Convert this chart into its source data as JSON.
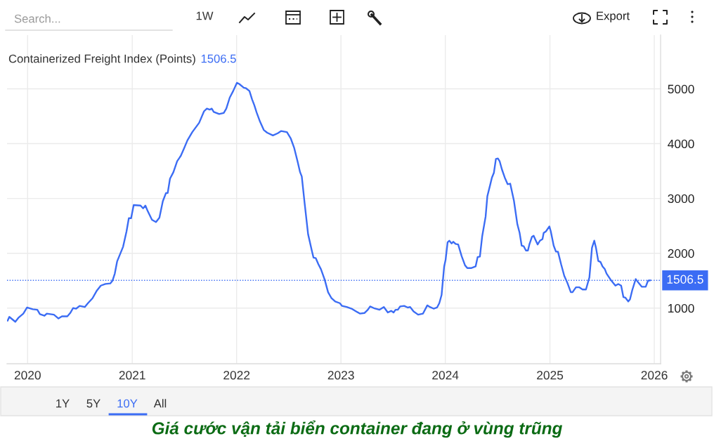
{
  "chart_data": {
    "type": "line",
    "title": "Containerized Freight Index (Points)",
    "subtitle": "1506.5",
    "annotations": [
      "Search...",
      "1W",
      "Export",
      "1Y",
      "5Y",
      "10Y",
      "All",
      "Giá cước vận tải biển container đang ở vùng trũng"
    ],
    "x": [
      "2019-10-23",
      "2019-10-29",
      "2019-11-19",
      "2019-12-01",
      "2019-12-17",
      "2019-12-30",
      "2020-01-19",
      "2020-02-04",
      "2020-02-13",
      "2020-02-29",
      "2020-03-08",
      "2020-04-02",
      "2020-04-18",
      "2020-04-30",
      "2020-05-19",
      "2020-05-29",
      "2020-06-08",
      "2020-06-19",
      "2020-07-01",
      "2020-07-19",
      "2020-07-30",
      "2020-08-15",
      "2020-08-29",
      "2020-09-13",
      "2020-09-29",
      "2020-10-16",
      "2020-10-24",
      "2020-11-01",
      "2020-11-09",
      "2020-11-30",
      "2020-12-12",
      "2020-12-20",
      "2020-12-28",
      "2021-01-06",
      "2021-01-30",
      "2021-02-08",
      "2021-02-16",
      "2021-02-24",
      "2021-03-11",
      "2021-03-25",
      "2021-04-06",
      "2021-04-18",
      "2021-04-29",
      "2021-05-05",
      "2021-05-13",
      "2021-05-25",
      "2021-06-07",
      "2021-06-20",
      "2021-07-01",
      "2021-07-13",
      "2021-07-30",
      "2021-08-23",
      "2021-09-09",
      "2021-09-19",
      "2021-09-29",
      "2021-10-06",
      "2021-10-13",
      "2021-11-01",
      "2021-11-17",
      "2021-11-26",
      "2021-12-08",
      "2021-12-20",
      "2022-01-02",
      "2022-01-10",
      "2022-01-26",
      "2022-02-03",
      "2022-02-15",
      "2022-02-24",
      "2022-03-04",
      "2022-03-12",
      "2022-03-24",
      "2022-04-06",
      "2022-04-18",
      "2022-05-08",
      "2022-05-25",
      "2022-06-06",
      "2022-06-26",
      "2022-07-09",
      "2022-07-21",
      "2022-08-02",
      "2022-08-11",
      "2022-08-17",
      "2022-08-27",
      "2022-09-08",
      "2022-09-21",
      "2022-09-27",
      "2022-10-05",
      "2022-10-14",
      "2022-10-23",
      "2022-11-05",
      "2022-11-17",
      "2022-11-29",
      "2022-12-12",
      "2022-12-28",
      "2023-01-05",
      "2023-01-21",
      "2023-02-07",
      "2023-02-23",
      "2023-03-08",
      "2023-03-24",
      "2023-04-05",
      "2023-04-13",
      "2023-04-26",
      "2023-05-16",
      "2023-05-31",
      "2023-06-14",
      "2023-06-26",
      "2023-07-04",
      "2023-07-11",
      "2023-07-19",
      "2023-07-27",
      "2023-08-10",
      "2023-08-23",
      "2023-08-31",
      "2023-09-12",
      "2023-09-28",
      "2023-10-15",
      "2023-10-30",
      "2023-11-08",
      "2023-11-21",
      "2023-12-03",
      "2023-12-11",
      "2023-12-19",
      "2023-12-28",
      "2024-01-02",
      "2024-01-09",
      "2024-01-15",
      "2024-01-23",
      "2024-01-29",
      "2024-02-06",
      "2024-02-15",
      "2024-02-27",
      "2024-03-10",
      "2024-03-18",
      "2024-03-31",
      "2024-04-16",
      "2024-04-23",
      "2024-05-01",
      "2024-05-09",
      "2024-05-21",
      "2024-05-27",
      "2024-06-06",
      "2024-06-12",
      "2024-06-19",
      "2024-06-26",
      "2024-07-03",
      "2024-07-09",
      "2024-07-17",
      "2024-07-27",
      "2024-08-06",
      "2024-08-15",
      "2024-08-28",
      "2024-09-09",
      "2024-09-17",
      "2024-09-24",
      "2024-10-01",
      "2024-10-09",
      "2024-10-16",
      "2024-10-21",
      "2024-10-30",
      "2024-11-05",
      "2024-11-11",
      "2024-11-19",
      "2024-11-27",
      "2024-12-06",
      "2024-12-10",
      "2024-12-18",
      "2024-12-30",
      "2025-01-04",
      "2025-01-14",
      "2025-01-22",
      "2025-01-29",
      "2025-02-09",
      "2025-02-20",
      "2025-03-03",
      "2025-03-15",
      "2025-03-21",
      "2025-04-02",
      "2025-04-13",
      "2025-04-25",
      "2025-05-07",
      "2025-05-19",
      "2025-05-28",
      "2025-06-05",
      "2025-06-11",
      "2025-06-19",
      "2025-06-27",
      "2025-07-04",
      "2025-07-12",
      "2025-07-18",
      "2025-08-01",
      "2025-08-18",
      "2025-08-28",
      "2025-09-07",
      "2025-09-15",
      "2025-09-22",
      "2025-10-02",
      "2025-10-08",
      "2025-10-16",
      "2025-10-28",
      "2025-11-07",
      "2025-11-18",
      "2025-12-02",
      "2025-12-10",
      "2025-12-18"
    ],
    "series": [
      {
        "color": "#3b6cf4",
        "values": [
          770,
          840,
          750,
          830,
          900,
          1010,
          980,
          970,
          890,
          860,
          900,
          880,
          810,
          850,
          850,
          910,
          1000,
          990,
          1040,
          1020,
          1090,
          1180,
          1310,
          1410,
          1440,
          1450,
          1500,
          1630,
          1850,
          2120,
          2400,
          2640,
          2640,
          2880,
          2870,
          2820,
          2870,
          2770,
          2610,
          2570,
          2650,
          2950,
          3100,
          3100,
          3360,
          3480,
          3680,
          3780,
          3910,
          4060,
          4210,
          4380,
          4590,
          4640,
          4620,
          4640,
          4580,
          4540,
          4560,
          4640,
          4840,
          4960,
          5110,
          5090,
          5020,
          5010,
          4960,
          4810,
          4700,
          4570,
          4400,
          4250,
          4200,
          4150,
          4190,
          4230,
          4210,
          4100,
          3930,
          3680,
          3480,
          3400,
          2910,
          2350,
          2050,
          1920,
          1910,
          1800,
          1710,
          1520,
          1290,
          1180,
          1120,
          1090,
          1040,
          1020,
          990,
          940,
          900,
          910,
          970,
          1030,
          1000,
          970,
          1020,
          920,
          950,
          920,
          970,
          970,
          1030,
          1040,
          1010,
          1020,
          940,
          880,
          900,
          1050,
          1020,
          990,
          1010,
          1090,
          1240,
          1760,
          1880,
          2200,
          2230,
          2180,
          2210,
          2170,
          2160,
          1950,
          1780,
          1730,
          1730,
          1760,
          1930,
          1940,
          2310,
          2670,
          3040,
          3250,
          3380,
          3470,
          3720,
          3730,
          3680,
          3530,
          3380,
          3260,
          3270,
          2960,
          2530,
          2370,
          2140,
          2130,
          2050,
          2050,
          2160,
          2300,
          2320,
          2250,
          2160,
          2230,
          2260,
          2370,
          2400,
          2490,
          2400,
          2140,
          2030,
          2030,
          1800,
          1590,
          1460,
          1290,
          1290,
          1380,
          1380,
          1340,
          1340,
          1560,
          2100,
          2230,
          2100,
          1860,
          1840,
          1760,
          1710,
          1630,
          1520,
          1410,
          1440,
          1410,
          1200,
          1190,
          1120,
          1160,
          1330,
          1530,
          1460,
          1390,
          1390,
          1500,
          1506.5
        ]
      }
    ],
    "xlim": [
      "2019-10-21",
      "2026-01-23"
    ],
    "ylim": [
      -15,
      5980
    ],
    "xticks": [
      "2020",
      "2021",
      "2022",
      "2023",
      "2024",
      "2025",
      "2026"
    ],
    "yticks": [
      1000,
      2000,
      3000,
      4000,
      5000
    ],
    "ref_lines": [
      {
        "axis": "y",
        "value": 1506.5,
        "label": "1506.5",
        "color": "#3b6cf4",
        "line_style": "dotted"
      }
    ],
    "grid": true
  }
}
